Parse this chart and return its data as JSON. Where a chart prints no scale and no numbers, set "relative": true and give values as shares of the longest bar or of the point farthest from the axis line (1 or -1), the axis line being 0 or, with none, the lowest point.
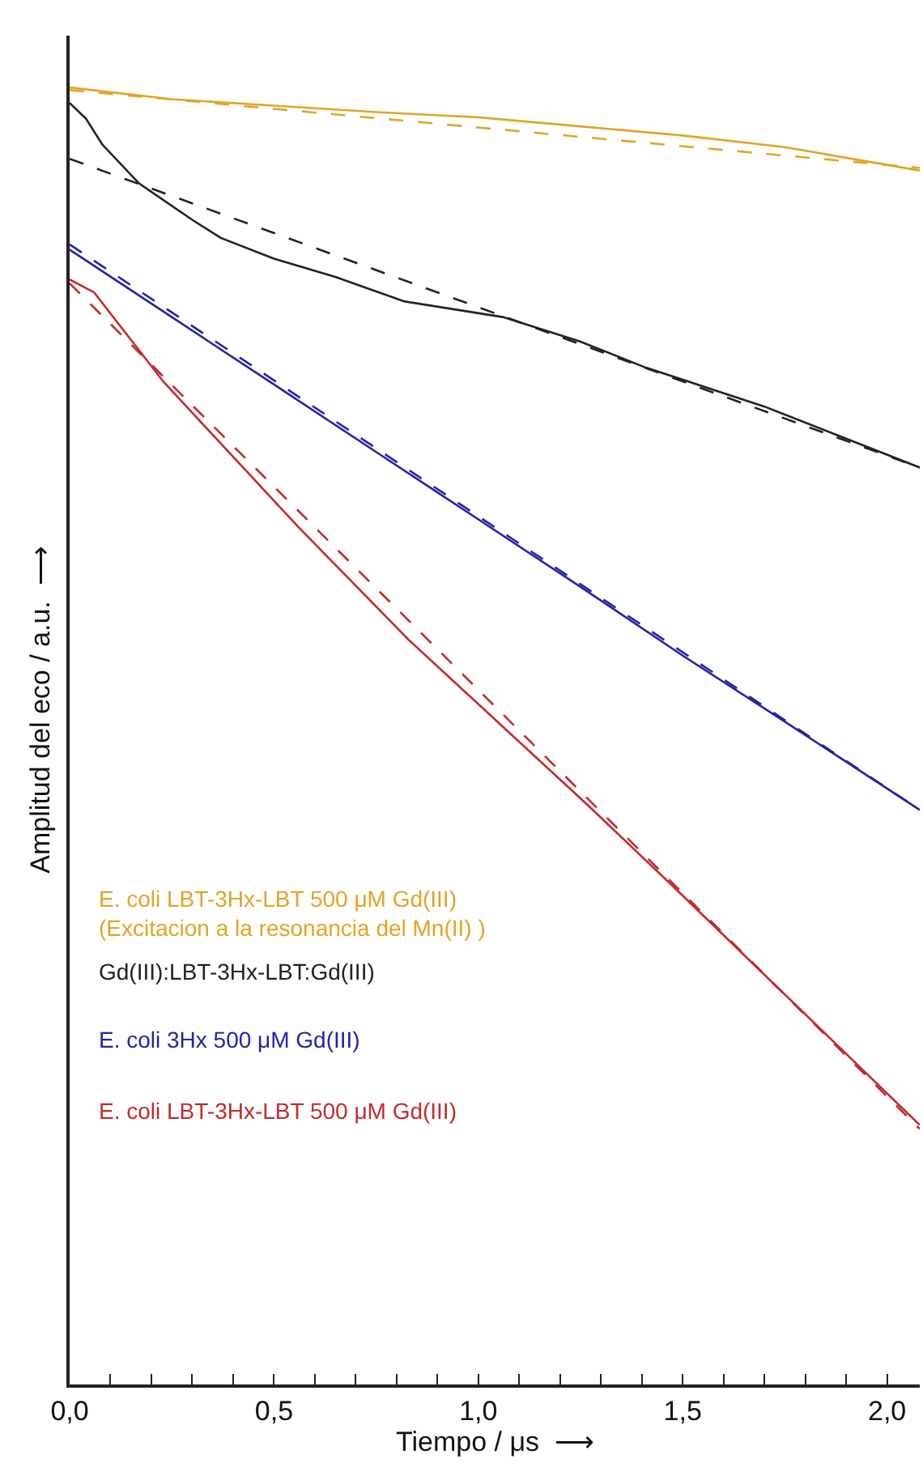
{
  "chart_data": {
    "type": "line",
    "relative": true,
    "xlabel": "Tiempo / μs  ⟶",
    "ylabel": "Amplitud del eco / a.u.  ⟶",
    "xlim": [
      0,
      2.08
    ],
    "xticks": [
      {
        "value": 0,
        "label": "0,0"
      },
      {
        "value": 0.1,
        "label": null
      },
      {
        "value": 0.2,
        "label": null
      },
      {
        "value": 0.3,
        "label": null
      },
      {
        "value": 0.4,
        "label": null
      },
      {
        "value": 0.5,
        "label": "0,5"
      },
      {
        "value": 0.6,
        "label": null
      },
      {
        "value": 0.7,
        "label": null
      },
      {
        "value": 0.8,
        "label": null
      },
      {
        "value": 0.9,
        "label": null
      },
      {
        "value": 1.0,
        "label": "1,0"
      },
      {
        "value": 1.1,
        "label": null
      },
      {
        "value": 1.2,
        "label": null
      },
      {
        "value": 1.3,
        "label": null
      },
      {
        "value": 1.4,
        "label": null
      },
      {
        "value": 1.5,
        "label": "1,5"
      },
      {
        "value": 1.6,
        "label": null
      },
      {
        "value": 1.7,
        "label": null
      },
      {
        "value": 1.8,
        "label": null
      },
      {
        "value": 1.9,
        "label": null
      },
      {
        "value": 2.0,
        "label": "2,0"
      }
    ],
    "tick_labels": "x",
    "legend": false,
    "marker": "none",
    "series": [
      {
        "name": "E. coli LBT-3Hx-LBT 500 μM Gd(III)\n(Excitacion a la resonancia del Mn(II) )",
        "color": "#e0a526",
        "line_style": "solid",
        "x": [
          0,
          0.25,
          0.5,
          0.75,
          1.0,
          1.25,
          1.5,
          1.75,
          2.08
        ],
        "values": [
          1.0,
          0.991,
          0.986,
          0.981,
          0.977,
          0.97,
          0.963,
          0.954,
          0.936
        ]
      },
      {
        "color": "#e0a526",
        "line_style": "dashed",
        "x": [
          0,
          2.08
        ],
        "values": [
          0.998,
          0.938
        ]
      },
      {
        "name": "Gd(III):LBT-3Hx-LBT:Gd(III)",
        "color": "#222222",
        "line_style": "solid",
        "x": [
          0,
          0.04,
          0.08,
          0.17,
          0.3,
          0.37,
          0.5,
          0.65,
          0.82,
          1.06,
          1.25,
          1.41,
          1.7,
          2.08
        ],
        "values": [
          0.988,
          0.976,
          0.956,
          0.926,
          0.898,
          0.884,
          0.868,
          0.854,
          0.835,
          0.823,
          0.804,
          0.784,
          0.754,
          0.707
        ]
      },
      {
        "color": "#222222",
        "line_style": "dashed",
        "x": [
          0,
          2.08
        ],
        "values": [
          0.945,
          0.707
        ]
      },
      {
        "name": "E. coli 3Hx 500 μM Gd(III)",
        "color": "#2424a8",
        "line_style": "solid",
        "x": [
          0,
          0.25,
          0.5,
          0.75,
          1.0,
          1.25,
          1.5,
          1.75,
          2.08
        ],
        "values": [
          0.875,
          0.823,
          0.771,
          0.719,
          0.667,
          0.615,
          0.562,
          0.511,
          0.443
        ]
      },
      {
        "color": "#2424a8",
        "line_style": "dashed",
        "x": [
          0,
          2.08
        ],
        "values": [
          0.879,
          0.443
        ]
      },
      {
        "name": "E. coli LBT-3Hx-LBT 500 μM Gd(III)",
        "color": "#c42a2e",
        "line_style": "solid",
        "x": [
          0,
          0.06,
          0.23,
          0.56,
          0.83,
          1.27,
          1.48,
          2.08
        ],
        "values": [
          0.852,
          0.842,
          0.773,
          0.661,
          0.574,
          0.446,
          0.383,
          0.2
        ]
      },
      {
        "color": "#c42a2e",
        "line_style": "dashed",
        "x": [
          0,
          2.08
        ],
        "values": [
          0.849,
          0.197
        ]
      }
    ]
  }
}
